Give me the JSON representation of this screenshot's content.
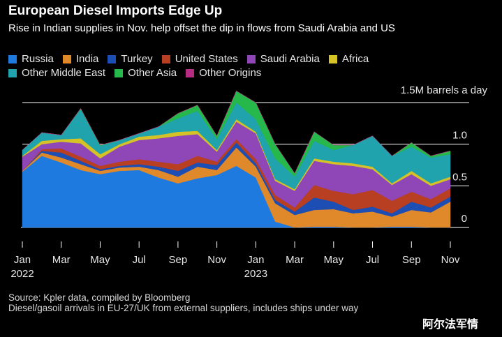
{
  "header": {
    "title": "European Diesel Imports Edge Up",
    "subtitle": "Rise in Indian supplies in Nov. help offset the dip in flows from Saudi Arabia and US"
  },
  "source": {
    "line1": "Source: Kpler data, compiled by Bloomberg",
    "line2": "Diesel/gasoil arrivals in EU-27/UK from external suppliers, includes ships under way"
  },
  "watermark": "阿尔法军情",
  "chart_data": {
    "type": "area",
    "stacked": true,
    "unit_label": "1.5M barrels a day",
    "ylim": [
      0,
      1.5
    ],
    "y_ticks": [
      {
        "value": 0,
        "label": "0"
      },
      {
        "value": 0.5,
        "label": "0.5"
      },
      {
        "value": 1.0,
        "label": "1.0"
      },
      {
        "value": 1.5,
        "label": ""
      }
    ],
    "x": [
      "2022-01",
      "2022-02",
      "2022-03",
      "2022-04",
      "2022-05",
      "2022-06",
      "2022-07",
      "2022-08",
      "2022-09",
      "2022-10",
      "2022-11",
      "2022-12",
      "2023-01",
      "2023-02",
      "2023-03",
      "2023-04",
      "2023-05",
      "2023-06",
      "2023-07",
      "2023-08",
      "2023-09",
      "2023-10",
      "2023-11"
    ],
    "x_ticks": [
      {
        "index": 0,
        "label": "Jan",
        "label2": "2022"
      },
      {
        "index": 2,
        "label": "Mar",
        "label2": ""
      },
      {
        "index": 4,
        "label": "May",
        "label2": ""
      },
      {
        "index": 6,
        "label": "Jul",
        "label2": ""
      },
      {
        "index": 8,
        "label": "Sep",
        "label2": ""
      },
      {
        "index": 10,
        "label": "Nov",
        "label2": ""
      },
      {
        "index": 12,
        "label": "Jan",
        "label2": "2023"
      },
      {
        "index": 14,
        "label": "Mar",
        "label2": ""
      },
      {
        "index": 16,
        "label": "May",
        "label2": ""
      },
      {
        "index": 18,
        "label": "Jul",
        "label2": ""
      },
      {
        "index": 20,
        "label": "Sep",
        "label2": ""
      },
      {
        "index": 22,
        "label": "Nov",
        "label2": ""
      }
    ],
    "legend_position": "top-left",
    "grid": true,
    "series": [
      {
        "name": "Russia",
        "color": "#1f7ae0",
        "values": [
          0.67,
          0.86,
          0.78,
          0.69,
          0.64,
          0.68,
          0.69,
          0.6,
          0.53,
          0.59,
          0.63,
          0.74,
          0.6,
          0.07,
          0.0,
          0.01,
          0.01,
          0.0,
          0.0,
          0.01,
          0.01,
          0.0,
          0.0
        ]
      },
      {
        "name": "India",
        "color": "#e0892b",
        "values": [
          0.01,
          0.04,
          0.06,
          0.07,
          0.04,
          0.04,
          0.04,
          0.09,
          0.08,
          0.14,
          0.06,
          0.22,
          0.13,
          0.22,
          0.15,
          0.2,
          0.21,
          0.17,
          0.19,
          0.12,
          0.2,
          0.18,
          0.31
        ]
      },
      {
        "name": "Turkey",
        "color": "#1d4eb3",
        "values": [
          0.0,
          0.02,
          0.06,
          0.04,
          0.02,
          0.02,
          0.03,
          0.04,
          0.07,
          0.05,
          0.06,
          0.06,
          0.04,
          0.04,
          0.04,
          0.15,
          0.09,
          0.04,
          0.06,
          0.04,
          0.1,
          0.06,
          0.06
        ]
      },
      {
        "name": "United States",
        "color": "#b83f22",
        "values": [
          0.0,
          0.02,
          0.05,
          0.05,
          0.04,
          0.05,
          0.06,
          0.06,
          0.08,
          0.08,
          0.04,
          0.04,
          0.05,
          0.06,
          0.05,
          0.15,
          0.13,
          0.19,
          0.2,
          0.15,
          0.12,
          0.1,
          0.1
        ]
      },
      {
        "name": "Saudi Arabia",
        "color": "#8f47b8",
        "values": [
          0.17,
          0.06,
          0.08,
          0.16,
          0.09,
          0.18,
          0.23,
          0.28,
          0.34,
          0.26,
          0.12,
          0.21,
          0.31,
          0.17,
          0.2,
          0.29,
          0.32,
          0.34,
          0.25,
          0.19,
          0.21,
          0.16,
          0.11
        ]
      },
      {
        "name": "Africa",
        "color": "#d4c226",
        "values": [
          0.01,
          0.04,
          0.03,
          0.06,
          0.05,
          0.03,
          0.04,
          0.04,
          0.05,
          0.04,
          0.02,
          0.03,
          0.02,
          0.02,
          0.02,
          0.03,
          0.03,
          0.03,
          0.03,
          0.02,
          0.04,
          0.03,
          0.03
        ]
      },
      {
        "name": "Other Middle East",
        "color": "#21a3ad",
        "values": [
          0.07,
          0.1,
          0.05,
          0.35,
          0.1,
          0.05,
          0.04,
          0.1,
          0.16,
          0.24,
          0.13,
          0.2,
          0.15,
          0.25,
          0.15,
          0.21,
          0.14,
          0.22,
          0.37,
          0.33,
          0.29,
          0.31,
          0.27
        ]
      },
      {
        "name": "Other Asia",
        "color": "#26b84a",
        "values": [
          0.0,
          0.0,
          0.0,
          0.01,
          0.01,
          0.0,
          0.0,
          0.0,
          0.06,
          0.07,
          0.04,
          0.14,
          0.2,
          0.17,
          0.04,
          0.11,
          0.06,
          0.0,
          0.0,
          0.0,
          0.05,
          0.02,
          0.04
        ]
      },
      {
        "name": "Other Origins",
        "color": "#b82b83",
        "values": [
          0.0,
          0.0,
          0.0,
          0.0,
          0.0,
          0.0,
          0.0,
          0.0,
          0.0,
          0.0,
          0.0,
          0.0,
          0.0,
          0.0,
          0.0,
          0.0,
          0.0,
          0.0,
          0.0,
          0.0,
          0.0,
          0.0,
          0.0
        ]
      }
    ]
  }
}
